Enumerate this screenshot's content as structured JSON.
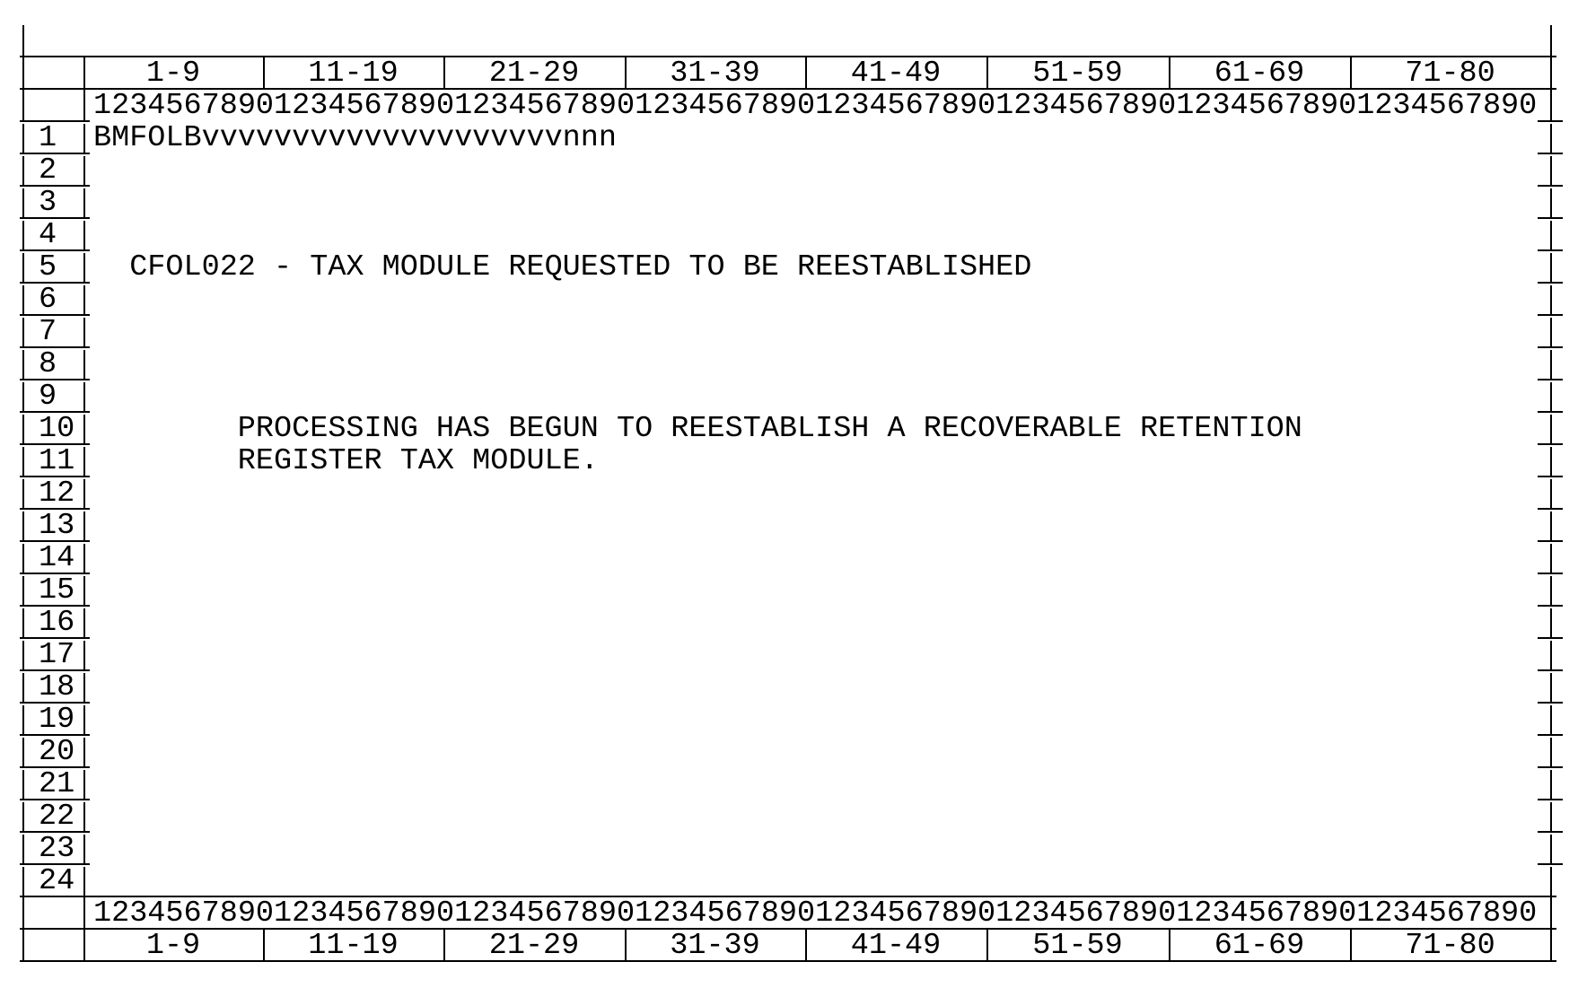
{
  "screen": {
    "column_groups": [
      "1-9",
      "11-19",
      "21-29",
      "31-39",
      "41-49",
      "51-59",
      "61-69",
      "71-80"
    ],
    "ruler": "12345678901234567890123456789012345678901234567890123456789012345678901234567890",
    "rows": [
      {
        "num": "1",
        "text": "BMFOLBvvvvvvvvvvvvvvvvvvvvnnn"
      },
      {
        "num": "2",
        "text": ""
      },
      {
        "num": "3",
        "text": ""
      },
      {
        "num": "4",
        "text": ""
      },
      {
        "num": "5",
        "text": "CFOL022 - TAX MODULE REQUESTED TO BE REESTABLISHED"
      },
      {
        "num": "6",
        "text": ""
      },
      {
        "num": "7",
        "text": ""
      },
      {
        "num": "8",
        "text": ""
      },
      {
        "num": "9",
        "text": ""
      },
      {
        "num": "10",
        "text": "PROCESSING HAS BEGUN TO REESTABLISH A RECOVERABLE RETENTION"
      },
      {
        "num": "11",
        "text": "REGISTER TAX MODULE."
      },
      {
        "num": "12",
        "text": ""
      },
      {
        "num": "13",
        "text": ""
      },
      {
        "num": "14",
        "text": ""
      },
      {
        "num": "15",
        "text": ""
      },
      {
        "num": "16",
        "text": ""
      },
      {
        "num": "17",
        "text": ""
      },
      {
        "num": "18",
        "text": ""
      },
      {
        "num": "19",
        "text": ""
      },
      {
        "num": "20",
        "text": ""
      },
      {
        "num": "21",
        "text": ""
      },
      {
        "num": "22",
        "text": ""
      },
      {
        "num": "23",
        "text": ""
      },
      {
        "num": "24",
        "text": ""
      }
    ]
  }
}
